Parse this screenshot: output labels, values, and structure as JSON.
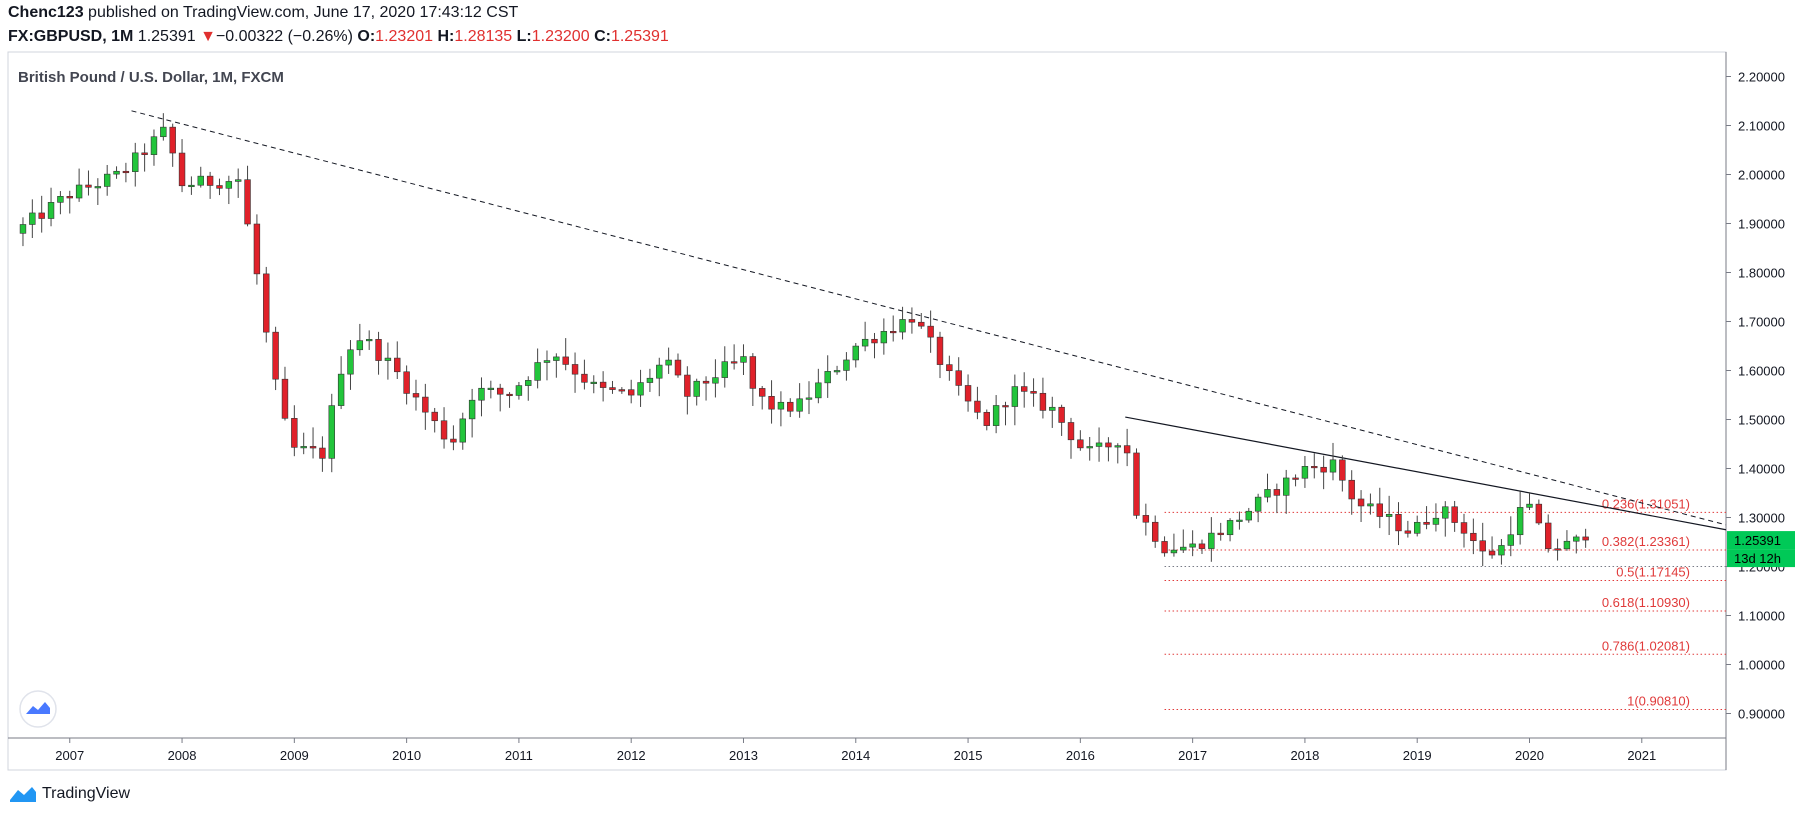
{
  "header": {
    "author": "Chenc123",
    "published": "published on TradingView.com, June 17, 2020 17:43:12 CST",
    "symbol": "FX:GBPUSD, 1M",
    "last": "1.25391",
    "change_arrow": "▼",
    "change": "−0.00322 (−0.26%)",
    "o_label": "O:",
    "o": "1.23201",
    "h_label": "H:",
    "h": "1.28135",
    "l_label": "L:",
    "l": "1.23200",
    "c_label": "C:",
    "c": "1.25391"
  },
  "colors": {
    "up": "#22c53b",
    "down": "#e0212a",
    "fib": "#e03a3a",
    "price_tag": "#00c957"
  },
  "chart_data": {
    "type": "candlestick",
    "title": "British Pound / U.S. Dollar, 1M, FXCM",
    "x_range": [
      2006.45,
      2021.75
    ],
    "y_range": [
      0.85,
      2.25
    ],
    "y_ticks": [
      "2.20000",
      "2.10000",
      "2.00000",
      "1.90000",
      "1.80000",
      "1.70000",
      "1.60000",
      "1.50000",
      "1.40000",
      "1.30000",
      "1.20000",
      "1.10000",
      "1.00000",
      "0.90000"
    ],
    "x_ticks": [
      "2007",
      "2008",
      "2009",
      "2010",
      "2011",
      "2012",
      "2013",
      "2014",
      "2015",
      "2016",
      "2017",
      "2018",
      "2019",
      "2020",
      "2021"
    ],
    "anchors": [
      [
        2006.5,
        1.88
      ],
      [
        2007.0,
        1.96
      ],
      [
        2007.45,
        2.0
      ],
      [
        2007.85,
        2.09
      ],
      [
        2008.0,
        1.98
      ],
      [
        2008.5,
        1.99
      ],
      [
        2008.65,
        1.82
      ],
      [
        2008.8,
        1.6
      ],
      [
        2008.97,
        1.44
      ],
      [
        2009.25,
        1.43
      ],
      [
        2009.45,
        1.64
      ],
      [
        2009.6,
        1.67
      ],
      [
        2009.9,
        1.6
      ],
      [
        2010.15,
        1.52
      ],
      [
        2010.4,
        1.45
      ],
      [
        2010.6,
        1.56
      ],
      [
        2010.9,
        1.55
      ],
      [
        2011.3,
        1.64
      ],
      [
        2011.7,
        1.56
      ],
      [
        2012.0,
        1.55
      ],
      [
        2012.3,
        1.62
      ],
      [
        2012.5,
        1.55
      ],
      [
        2012.8,
        1.6
      ],
      [
        2013.0,
        1.62
      ],
      [
        2013.1,
        1.55
      ],
      [
        2013.3,
        1.52
      ],
      [
        2013.5,
        1.53
      ],
      [
        2013.8,
        1.6
      ],
      [
        2014.0,
        1.65
      ],
      [
        2014.5,
        1.71
      ],
      [
        2014.65,
        1.66
      ],
      [
        2014.9,
        1.56
      ],
      [
        2015.15,
        1.49
      ],
      [
        2015.4,
        1.56
      ],
      [
        2015.75,
        1.52
      ],
      [
        2015.95,
        1.46
      ],
      [
        2016.05,
        1.43
      ],
      [
        2016.2,
        1.44
      ],
      [
        2016.4,
        1.47
      ],
      [
        2016.47,
        1.32
      ],
      [
        2016.75,
        1.24
      ],
      [
        2017.0,
        1.24
      ],
      [
        2017.3,
        1.28
      ],
      [
        2017.7,
        1.35
      ],
      [
        2018.0,
        1.4
      ],
      [
        2018.25,
        1.41
      ],
      [
        2018.45,
        1.33
      ],
      [
        2018.7,
        1.3
      ],
      [
        2018.95,
        1.27
      ],
      [
        2019.2,
        1.32
      ],
      [
        2019.45,
        1.27
      ],
      [
        2019.6,
        1.22
      ],
      [
        2019.75,
        1.24
      ],
      [
        2019.9,
        1.31
      ],
      [
        2020.0,
        1.32
      ],
      [
        2020.15,
        1.24
      ],
      [
        2020.3,
        1.24
      ],
      [
        2020.46,
        1.25391
      ]
    ],
    "last_price": "1.25391",
    "countdown": "13d 12h",
    "fib_levels": [
      {
        "label": "0.236(1.31051)",
        "value": 1.31051
      },
      {
        "label": "0.382(1.23361)",
        "value": 1.23361
      },
      {
        "label": "0.5(1.17145)",
        "value": 1.17145
      },
      {
        "label": "0.618(1.10930)",
        "value": 1.1093
      },
      {
        "label": "0.786(1.02081)",
        "value": 1.02081
      },
      {
        "label": "1(0.90810)",
        "value": 0.9081
      }
    ],
    "fib_start_x": 2016.75,
    "dotted_level": 1.2,
    "dashed_trendline": [
      [
        2007.55,
        2.13
      ],
      [
        2021.75,
        1.285
      ]
    ],
    "solid_trendline": [
      [
        2016.4,
        1.505
      ],
      [
        2021.75,
        1.275
      ]
    ]
  },
  "footer": {
    "brand": "TradingView"
  }
}
